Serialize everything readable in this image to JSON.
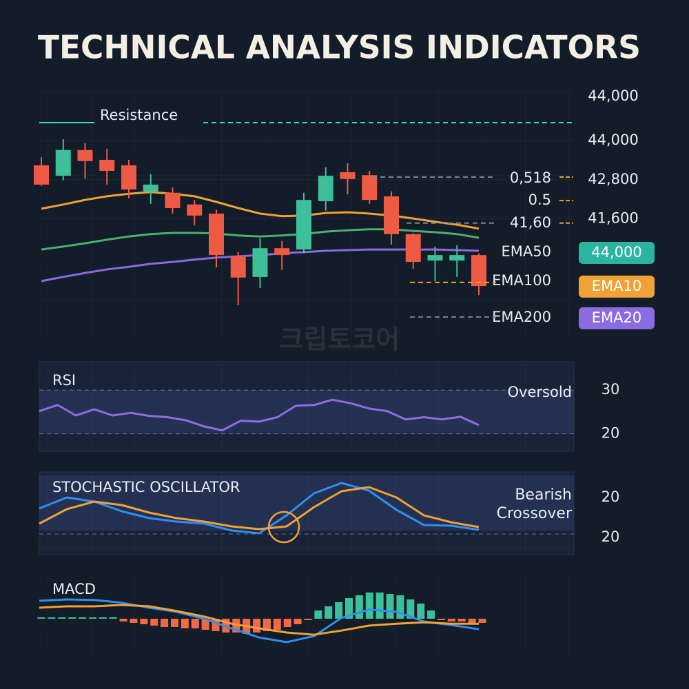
{
  "header": {
    "title": "TECHNICAL ANALYSIS INDICATORS"
  },
  "watermark": "크립토코어",
  "chart_data": [
    {
      "type": "candlestick",
      "categories": [
        null,
        null,
        null,
        null,
        null,
        null,
        null,
        null,
        null,
        null,
        null,
        null,
        null,
        null,
        null,
        null,
        null,
        null,
        null,
        null,
        null
      ],
      "open": [
        43240,
        42920,
        43710,
        43410,
        43240,
        42440,
        42400,
        42040,
        41760,
        40450,
        39820,
        40700,
        40660,
        42140,
        43030,
        42940,
        42290,
        41130,
        40320,
        40320,
        40490
      ],
      "high": [
        43490,
        44040,
        43920,
        43750,
        43410,
        42970,
        42560,
        42180,
        41870,
        40580,
        41000,
        40920,
        42400,
        43180,
        43300,
        43070,
        42440,
        41170,
        40750,
        40790,
        40540
      ],
      "low": [
        42610,
        42780,
        42820,
        42650,
        42230,
        42060,
        41760,
        41400,
        40110,
        38950,
        39480,
        40030,
        40540,
        41850,
        42350,
        42060,
        40810,
        40070,
        39690,
        39820,
        39270
      ],
      "close": [
        42650,
        43710,
        43370,
        43070,
        42500,
        42650,
        41930,
        41700,
        40490,
        39800,
        40700,
        40490,
        42180,
        42920,
        42820,
        42180,
        41130,
        40280,
        40490,
        40490,
        39540
      ],
      "up_color": "#3dbf9a",
      "down_color": "#ef5a45",
      "lines": [
        {
          "color": "#f0a236",
          "values": [
            41910,
            42040,
            42180,
            42290,
            42370,
            42420,
            42370,
            42290,
            42120,
            41930,
            41760,
            41680,
            41700,
            41780,
            41800,
            41760,
            41700,
            41610,
            41510,
            41420,
            41300
          ]
        },
        {
          "color": "#4caf72",
          "values": [
            40660,
            40750,
            40850,
            40960,
            41060,
            41130,
            41170,
            41170,
            41150,
            41090,
            41060,
            41090,
            41130,
            41210,
            41250,
            41280,
            41280,
            41230,
            41190,
            41130,
            41020
          ]
        },
        {
          "color": "#8a6be0",
          "values": [
            39690,
            39820,
            39940,
            40050,
            40130,
            40220,
            40280,
            40350,
            40410,
            40450,
            40490,
            40540,
            40580,
            40620,
            40640,
            40660,
            40660,
            40660,
            40660,
            40640,
            40620
          ]
        }
      ],
      "ylim": [
        38000,
        45500
      ],
      "yticks": [
        {
          "value": 44000,
          "label": "44,000"
        },
        {
          "value": 42800,
          "label": "42,800"
        },
        {
          "value": 41600,
          "label": "41,600"
        }
      ],
      "top_label": "44,000",
      "resistance": {
        "label": "Resistance",
        "value": 44550,
        "color": "#4fd1c0"
      },
      "levels": [
        {
          "label": "0,518",
          "value": 42880,
          "line_color": "#7d8794",
          "tick_color": "#f0a236"
        },
        {
          "label": "0.5",
          "value": 42160,
          "tick_color": "#f0a236"
        },
        {
          "label": "41,60",
          "value": 41470,
          "line_color": "#7d8794",
          "tick_color": "#f0a236"
        },
        {
          "label": "EMA50"
        },
        {
          "label": "EMA100",
          "value": 39650,
          "line_color": "#f0a236"
        },
        {
          "label": "EMA200",
          "value": 38590,
          "line_color": "#7d8794"
        }
      ],
      "badges": [
        {
          "label": "44,000",
          "color": "#2bb5a0"
        },
        {
          "label": "EMA10",
          "color": "#f0a236"
        },
        {
          "label": "EMA20",
          "color": "#8a6be0"
        }
      ]
    },
    {
      "type": "line",
      "title": "RSI",
      "annotation": "Oversold",
      "series": [
        {
          "color": "#8b6fe0",
          "values": [
            25.2,
            26.6,
            24.2,
            25.6,
            24.2,
            24.8,
            24.1,
            23.8,
            23.1,
            21.7,
            20.8,
            23.0,
            22.8,
            23.8,
            26.4,
            26.6,
            27.8,
            27.0,
            25.8,
            25.2,
            23.3,
            23.8,
            23.3,
            23.9,
            22.0
          ]
        }
      ],
      "ylim": [
        16,
        36.5
      ],
      "yticks": [
        30,
        20
      ]
    },
    {
      "type": "line",
      "title": "STOCHASTIC OSCILLATOR",
      "annotation": "Bearish Crossover",
      "series": [
        {
          "color": "#2f8ff0",
          "values": [
            55.8,
            69.2,
            64.2,
            52.5,
            44.2,
            40,
            37.5,
            29.2,
            25.8,
            47.5,
            74.2,
            86.7,
            77.5,
            54.2,
            35.8,
            35,
            30
          ]
        },
        {
          "color": "#f0a236",
          "values": [
            37.5,
            55,
            64.2,
            60,
            50.8,
            44.2,
            40,
            34.2,
            30.8,
            34.2,
            57.5,
            76.7,
            81.7,
            69.2,
            47.5,
            39.2,
            33.3
          ]
        }
      ],
      "ylim": [
        0,
        100
      ],
      "axis_labels": [
        "20",
        "20"
      ]
    },
    {
      "type": "bar",
      "title": "MACD",
      "values": [
        0.05,
        0.05,
        0.05,
        0.05,
        0.05,
        0.05,
        0.05,
        0.05,
        -0.1,
        -0.15,
        -0.2,
        -0.25,
        -0.3,
        -0.3,
        -0.35,
        -0.35,
        -0.4,
        -0.45,
        -0.5,
        -0.5,
        -0.55,
        -0.5,
        -0.45,
        -0.4,
        -0.3,
        -0.2,
        -0.05,
        0.3,
        0.45,
        0.6,
        0.75,
        0.85,
        0.95,
        0.95,
        0.9,
        0.85,
        0.7,
        0.55,
        0.3,
        -0.05,
        -0.1,
        -0.1,
        -0.15,
        -0.15
      ],
      "pos_color": "#3dbf9a",
      "neg_color": "#f26a45",
      "series": [
        {
          "color": "#2f8ff0",
          "values": [
            0.65,
            0.7,
            0.68,
            0.58,
            0.4,
            0.25,
            0,
            -0.35,
            -0.68,
            -0.85,
            -0.63,
            0.03,
            0.33,
            0.25,
            -0.1,
            -0.23,
            -0.38
          ]
        },
        {
          "color": "#f0a236",
          "values": [
            0.4,
            0.45,
            0.45,
            0.5,
            0.45,
            0.28,
            0.08,
            -0.18,
            -0.35,
            -0.5,
            -0.58,
            -0.43,
            -0.25,
            -0.18,
            -0.13,
            -0.18,
            -0.18
          ]
        }
      ],
      "ylim": [
        -1.3,
        1.7
      ]
    }
  ]
}
